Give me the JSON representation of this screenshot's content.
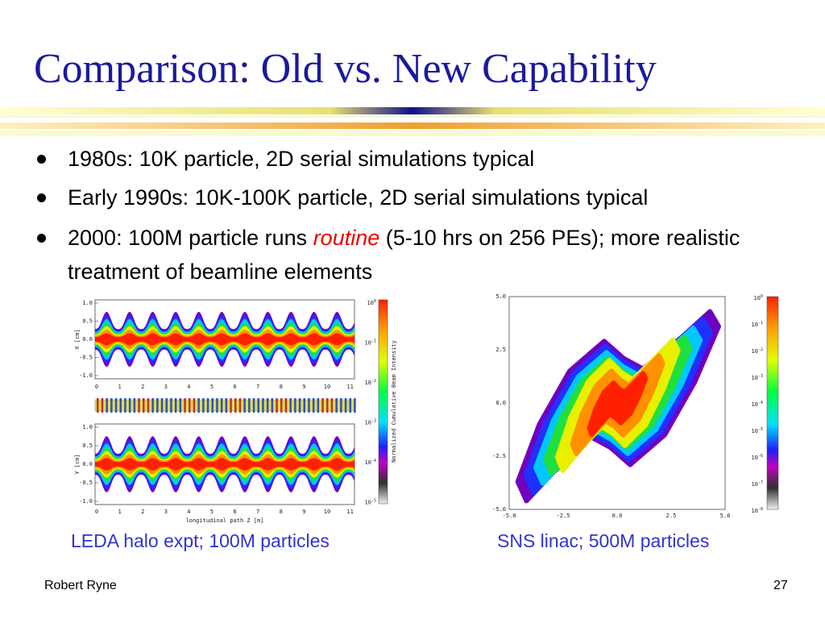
{
  "title": "Comparison: Old vs. New Capability",
  "bullets": [
    {
      "segments": [
        {
          "text": "1980s: 10K particle, 2D serial simulations typical",
          "emphasis": false
        }
      ]
    },
    {
      "segments": [
        {
          "text": "Early 1990s: 10K-100K particle, 2D serial simulations typical",
          "emphasis": false
        }
      ]
    },
    {
      "segments": [
        {
          "text": "2000: 100M particle runs ",
          "emphasis": false
        },
        {
          "text": "routine",
          "emphasis": true
        },
        {
          "text": " (5-10 hrs on 256 PEs); more realistic treatment of beamline elements",
          "emphasis": false
        }
      ]
    }
  ],
  "figures": [
    {
      "caption": "LEDA halo expt; 100M particles",
      "yticks": [
        "1.0",
        "0.5",
        "0.0",
        "-0.5",
        "-1.0"
      ],
      "xticks": [
        "0",
        "1",
        "2",
        "3",
        "4",
        "5",
        "6",
        "7",
        "8",
        "9",
        "10",
        "11"
      ],
      "top_ylabel": "X [cm]",
      "bottom_ylabel": "Y [cm]",
      "xlabel": "longitudinal path Z [m]",
      "colorbar_label": "Normalized Cumulative Beam Intensity",
      "colorbar_ticks": [
        {
          "base": "10",
          "exp": "0"
        },
        {
          "base": "10",
          "exp": "-1"
        },
        {
          "base": "10",
          "exp": "-2"
        },
        {
          "base": "10",
          "exp": "-3"
        },
        {
          "base": "10",
          "exp": "-4"
        },
        {
          "base": "10",
          "exp": "-5"
        }
      ]
    },
    {
      "caption": "SNS linac; 500M particles",
      "yticks": [
        "5.0",
        "2.5",
        "0.0",
        "-2.5",
        "-5.0"
      ],
      "xticks": [
        "-5.0",
        "-2.5",
        "0.0",
        "2.5",
        "5.0"
      ],
      "colorbar_ticks": [
        {
          "base": "10",
          "exp": "0"
        },
        {
          "base": "10",
          "exp": "-1"
        },
        {
          "base": "10",
          "exp": "-2"
        },
        {
          "base": "10",
          "exp": "-3"
        },
        {
          "base": "10",
          "exp": "-4"
        },
        {
          "base": "10",
          "exp": "-5"
        },
        {
          "base": "10",
          "exp": "-6"
        },
        {
          "base": "10",
          "exp": "-7"
        },
        {
          "base": "10",
          "exp": "-8"
        }
      ]
    }
  ],
  "footer": {
    "author": "Robert Ryne",
    "page": "27"
  }
}
